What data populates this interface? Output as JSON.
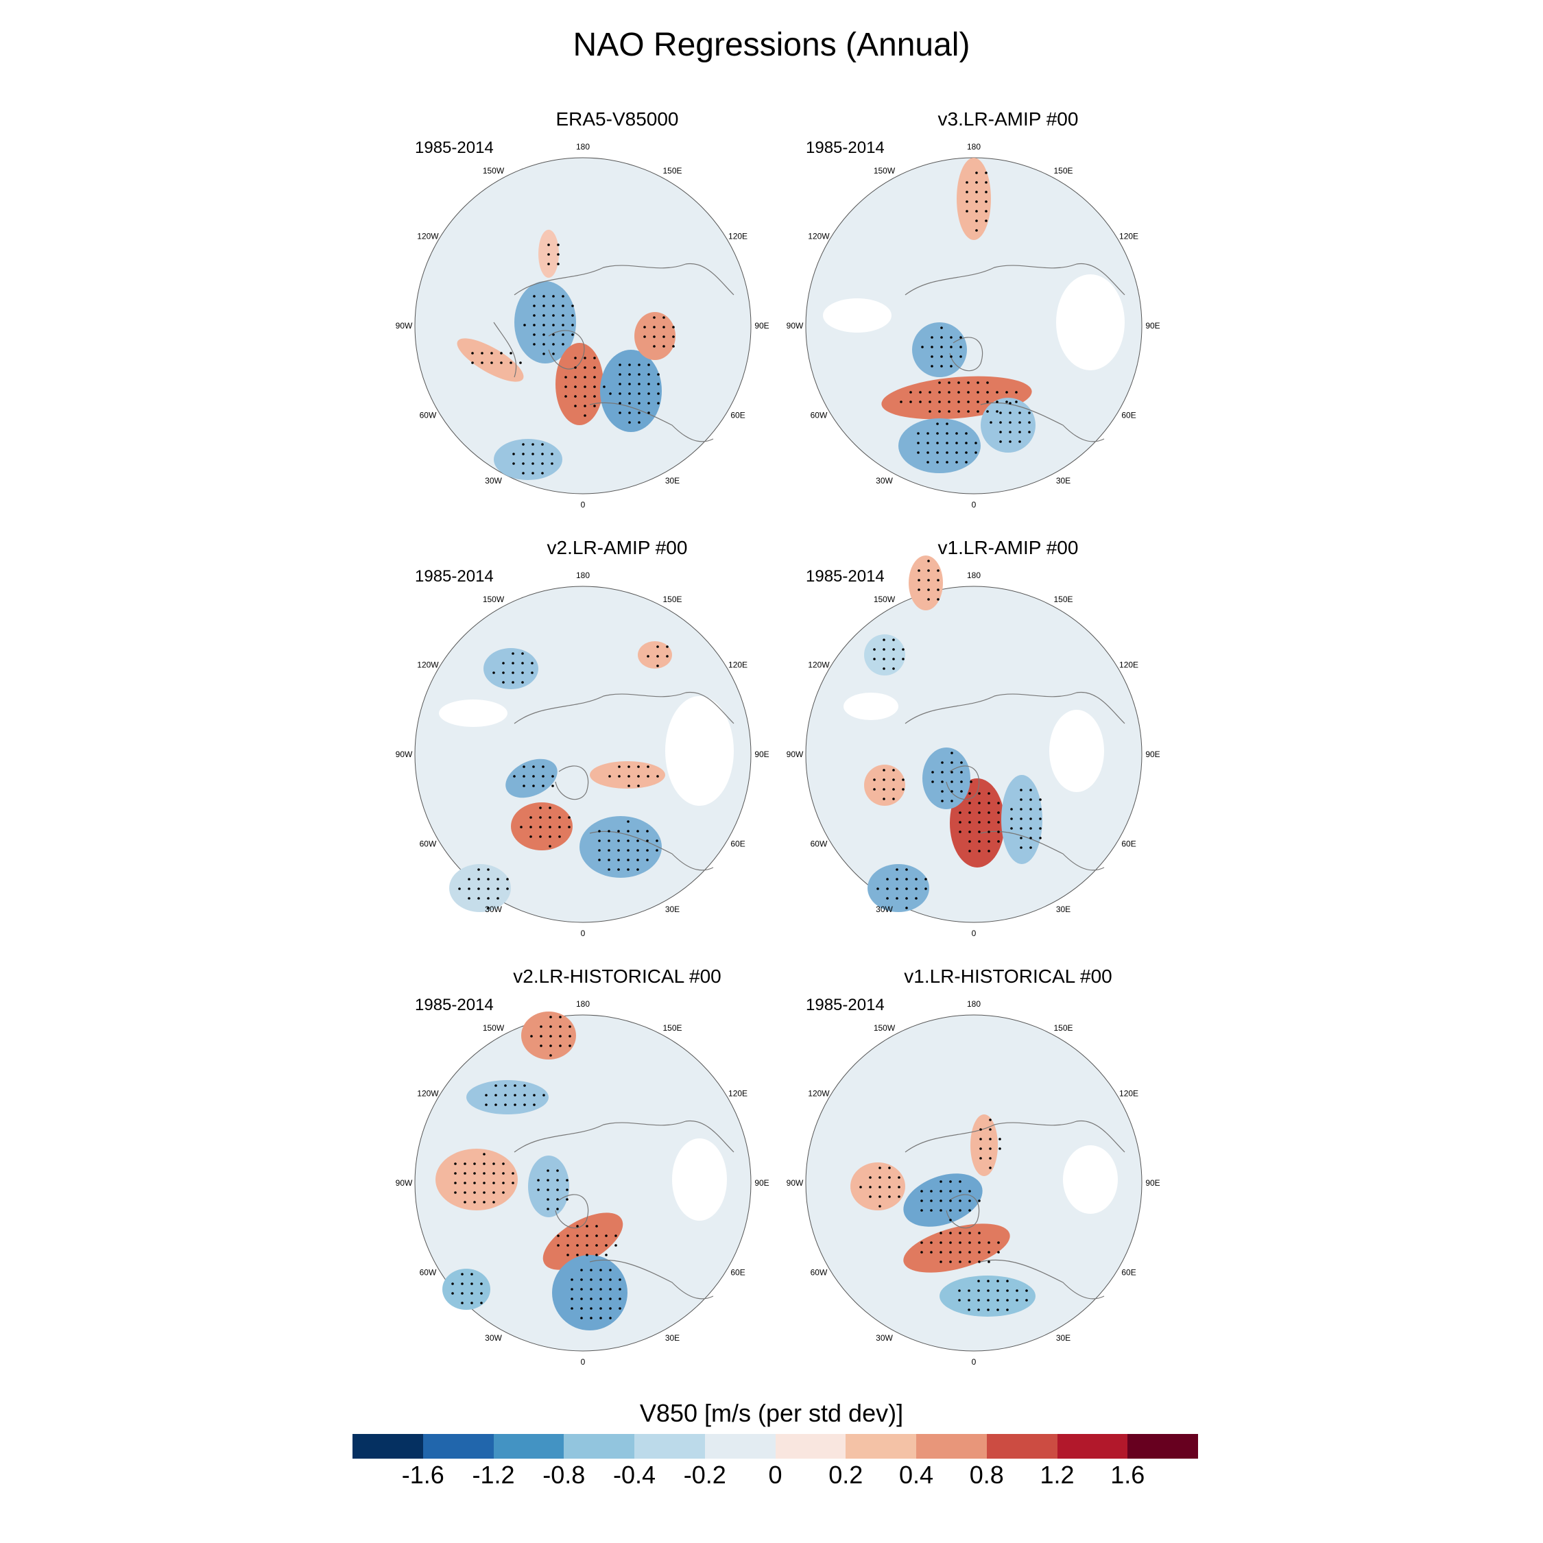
{
  "title": "NAO Regressions (Annual)",
  "panels": [
    {
      "title": "ERA5-V85000",
      "period": "1985-2014"
    },
    {
      "title": "v3.LR-AMIP  #00",
      "period": "1985-2014"
    },
    {
      "title": "v2.LR-AMIP  #00",
      "period": "1985-2014"
    },
    {
      "title": "v1.LR-AMIP  #00",
      "period": "1985-2014"
    },
    {
      "title": "v2.LR-HISTORICAL  #00",
      "period": "1985-2014"
    },
    {
      "title": "v1.LR-HISTORICAL  #00",
      "period": "1985-2014"
    }
  ],
  "longitude_labels": [
    "180",
    "150E",
    "120E",
    "90E",
    "60E",
    "30E",
    "0",
    "30W",
    "60W",
    "90W",
    "120W",
    "150W"
  ],
  "colorbar": {
    "title": "V850 [m/s (per std dev)]",
    "ticks": [
      "-1.6",
      "-1.2",
      "-0.8",
      "-0.4",
      "-0.2",
      "0",
      "0.2",
      "0.4",
      "0.8",
      "1.2",
      "1.6"
    ],
    "colors": [
      "#053061",
      "#2166ac",
      "#4393c3",
      "#92c5de",
      "#bcdaea",
      "#e3ecf2",
      "#f9e6df",
      "#f4c2a6",
      "#e8967a",
      "#cc4c42",
      "#b2182b",
      "#67001f"
    ]
  }
}
